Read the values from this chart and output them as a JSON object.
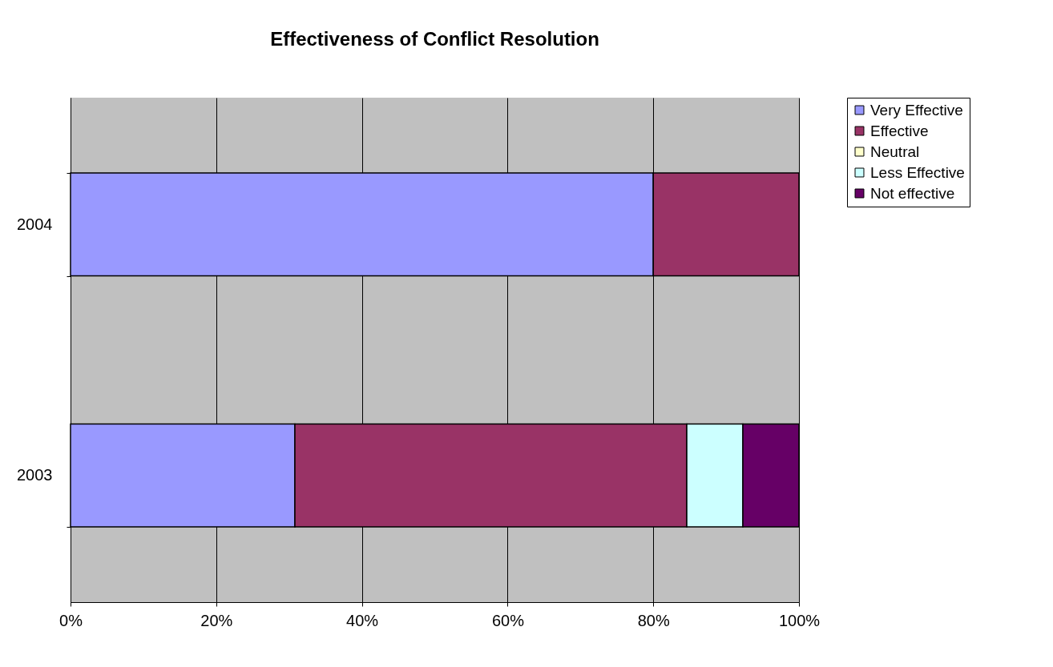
{
  "chart_data": {
    "type": "bar",
    "title": "Effectiveness of Conflict Resolution",
    "orientation": "horizontal",
    "stacked": true,
    "categories": [
      "2004",
      "2003"
    ],
    "series": [
      {
        "name": "Very Effective",
        "color": "#9999ff",
        "values": [
          80,
          30.8
        ]
      },
      {
        "name": "Effective",
        "color": "#993366",
        "values": [
          20,
          53.8
        ]
      },
      {
        "name": "Neutral",
        "color": "#ffffcc",
        "values": [
          0,
          0
        ]
      },
      {
        "name": "Less Effective",
        "color": "#ccffff",
        "values": [
          0,
          7.7
        ]
      },
      {
        "name": "Not effective",
        "color": "#660066",
        "values": [
          0,
          7.7
        ]
      }
    ],
    "xlim": [
      0,
      100
    ],
    "xticks": [
      {
        "value": 0,
        "label": "0%"
      },
      {
        "value": 20,
        "label": "20%"
      },
      {
        "value": 40,
        "label": "40%"
      },
      {
        "value": 60,
        "label": "60%"
      },
      {
        "value": 80,
        "label": "80%"
      },
      {
        "value": 100,
        "label": "100%"
      }
    ],
    "grid": "x",
    "legend": "right"
  }
}
